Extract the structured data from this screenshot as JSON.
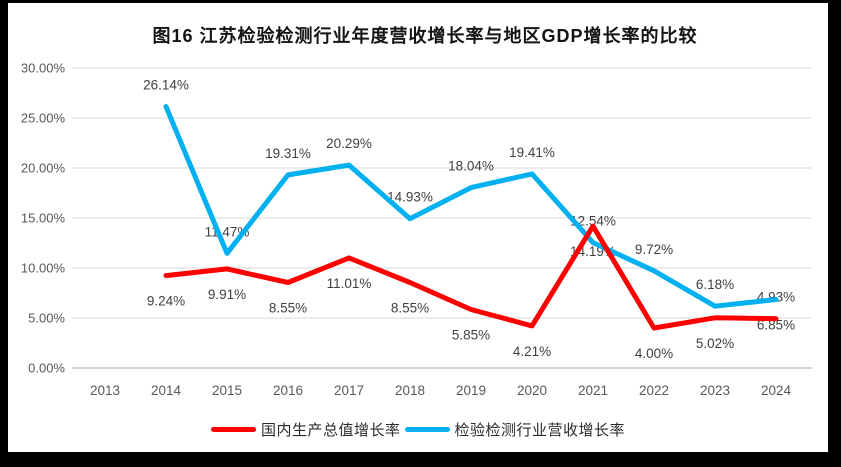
{
  "title": "图16   江苏检验检测行业年度营收增长率与地区GDP增长率的比较",
  "chart_data": {
    "type": "line",
    "title": "图16   江苏检验检测行业年度营收增长率与地区GDP增长率的比较",
    "categories": [
      "2013",
      "2014",
      "2015",
      "2016",
      "2017",
      "2018",
      "2019",
      "2020",
      "2021",
      "2022",
      "2023",
      "2024"
    ],
    "y_ticks": [
      "0.00%",
      "5.00%",
      "10.00%",
      "15.00%",
      "20.00%",
      "25.00%",
      "30.00%"
    ],
    "ylim": [
      0,
      30
    ],
    "grid": true,
    "legend_position": "bottom",
    "series": [
      {
        "id": "gdp",
        "name": "国内生产总值增长率",
        "color": "#fe0000",
        "values": [
          null,
          9.24,
          9.91,
          8.55,
          11.01,
          8.55,
          5.85,
          4.21,
          14.19,
          4.0,
          5.02,
          4.93
        ],
        "labels": [
          null,
          "9.24%",
          "9.91%",
          "8.55%",
          "11.01%",
          "8.55%",
          "5.85%",
          "4.21%",
          "14.19%",
          "4.00%",
          "5.02%",
          "4.93%"
        ],
        "label_placements": [
          null,
          "below",
          "below",
          "below",
          "below",
          "below",
          "below",
          "below",
          "below",
          "below",
          "below",
          "above"
        ]
      },
      {
        "id": "industry",
        "name": "检验检测行业营收增长率",
        "color": "#00b0f0",
        "values": [
          null,
          26.14,
          11.47,
          19.31,
          20.29,
          14.93,
          18.04,
          19.41,
          12.54,
          9.72,
          6.18,
          6.85
        ],
        "labels": [
          null,
          "26.14%",
          "11.47%",
          "19.31%",
          "20.29%",
          "14.93%",
          "18.04%",
          "19.41%",
          "12.54%",
          "9.72%",
          "6.18%",
          "6.85%"
        ],
        "label_placements": [
          null,
          "above",
          "above",
          "above",
          "above",
          "above",
          "above",
          "above",
          "above",
          "above",
          "above",
          "below"
        ]
      }
    ]
  },
  "legend": {
    "items": [
      {
        "label": "国内生产总值增长率",
        "color": "#fe0000"
      },
      {
        "label": "检验检测行业营收增长率",
        "color": "#00b0f0"
      }
    ]
  },
  "colors": {
    "frame_bg": "#000000",
    "chart_bg": "#ffffff",
    "grid": "#d9d9d9",
    "axis": "#c6c6c6",
    "tick_text": "#595959",
    "data_label": "#404040",
    "title_text": "#141414"
  }
}
